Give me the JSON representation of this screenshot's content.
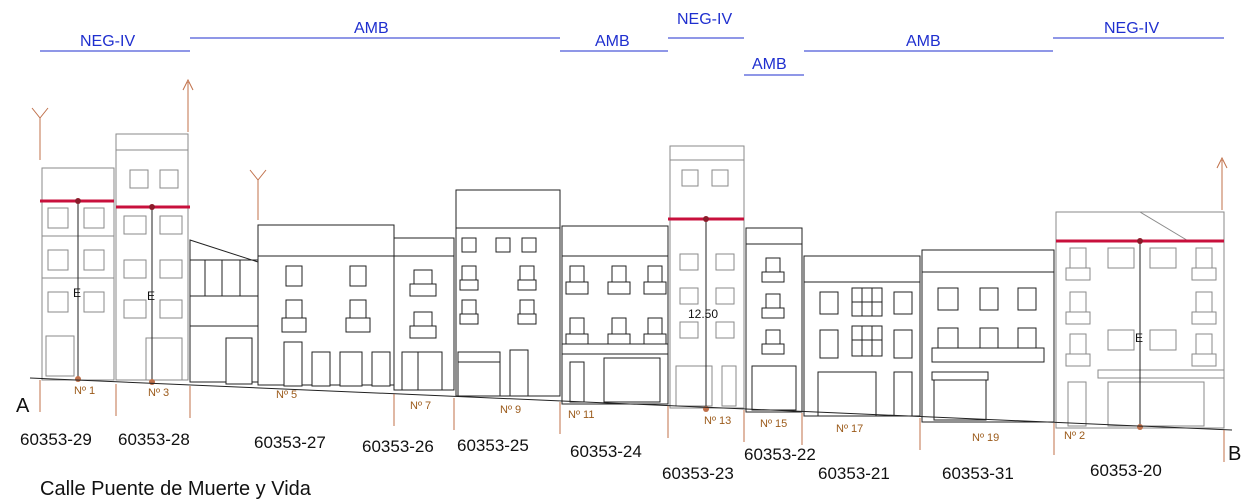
{
  "zones": [
    {
      "label": "NEG-IV"
    },
    {
      "label": "AMB"
    },
    {
      "label": "AMB"
    },
    {
      "label": "NEG-IV"
    },
    {
      "label": "AMB"
    },
    {
      "label": "AMB"
    },
    {
      "label": "NEG-IV"
    }
  ],
  "street_name": "Calle Puente de Muerte y Vida",
  "point_a": "A",
  "point_b": "B",
  "height_value": "12.50",
  "height_marker": "E",
  "parcels": [
    "60353-29",
    "60353-28",
    "60353-27",
    "60353-26",
    "60353-25",
    "60353-24",
    "60353-23",
    "60353-22",
    "60353-21",
    "60353-31",
    "60353-20"
  ],
  "street_numbers": [
    "Nº 1",
    "Nº 3",
    "Nº 5",
    "Nº 7",
    "Nº 9",
    "Nº 11",
    "Nº 13",
    "Nº 15",
    "Nº 17",
    "Nº 19",
    "Nº 2"
  ],
  "colors": {
    "zone": "#1f2fcf",
    "height_line": "#c8103c",
    "annotation": "#9b5a1a"
  }
}
